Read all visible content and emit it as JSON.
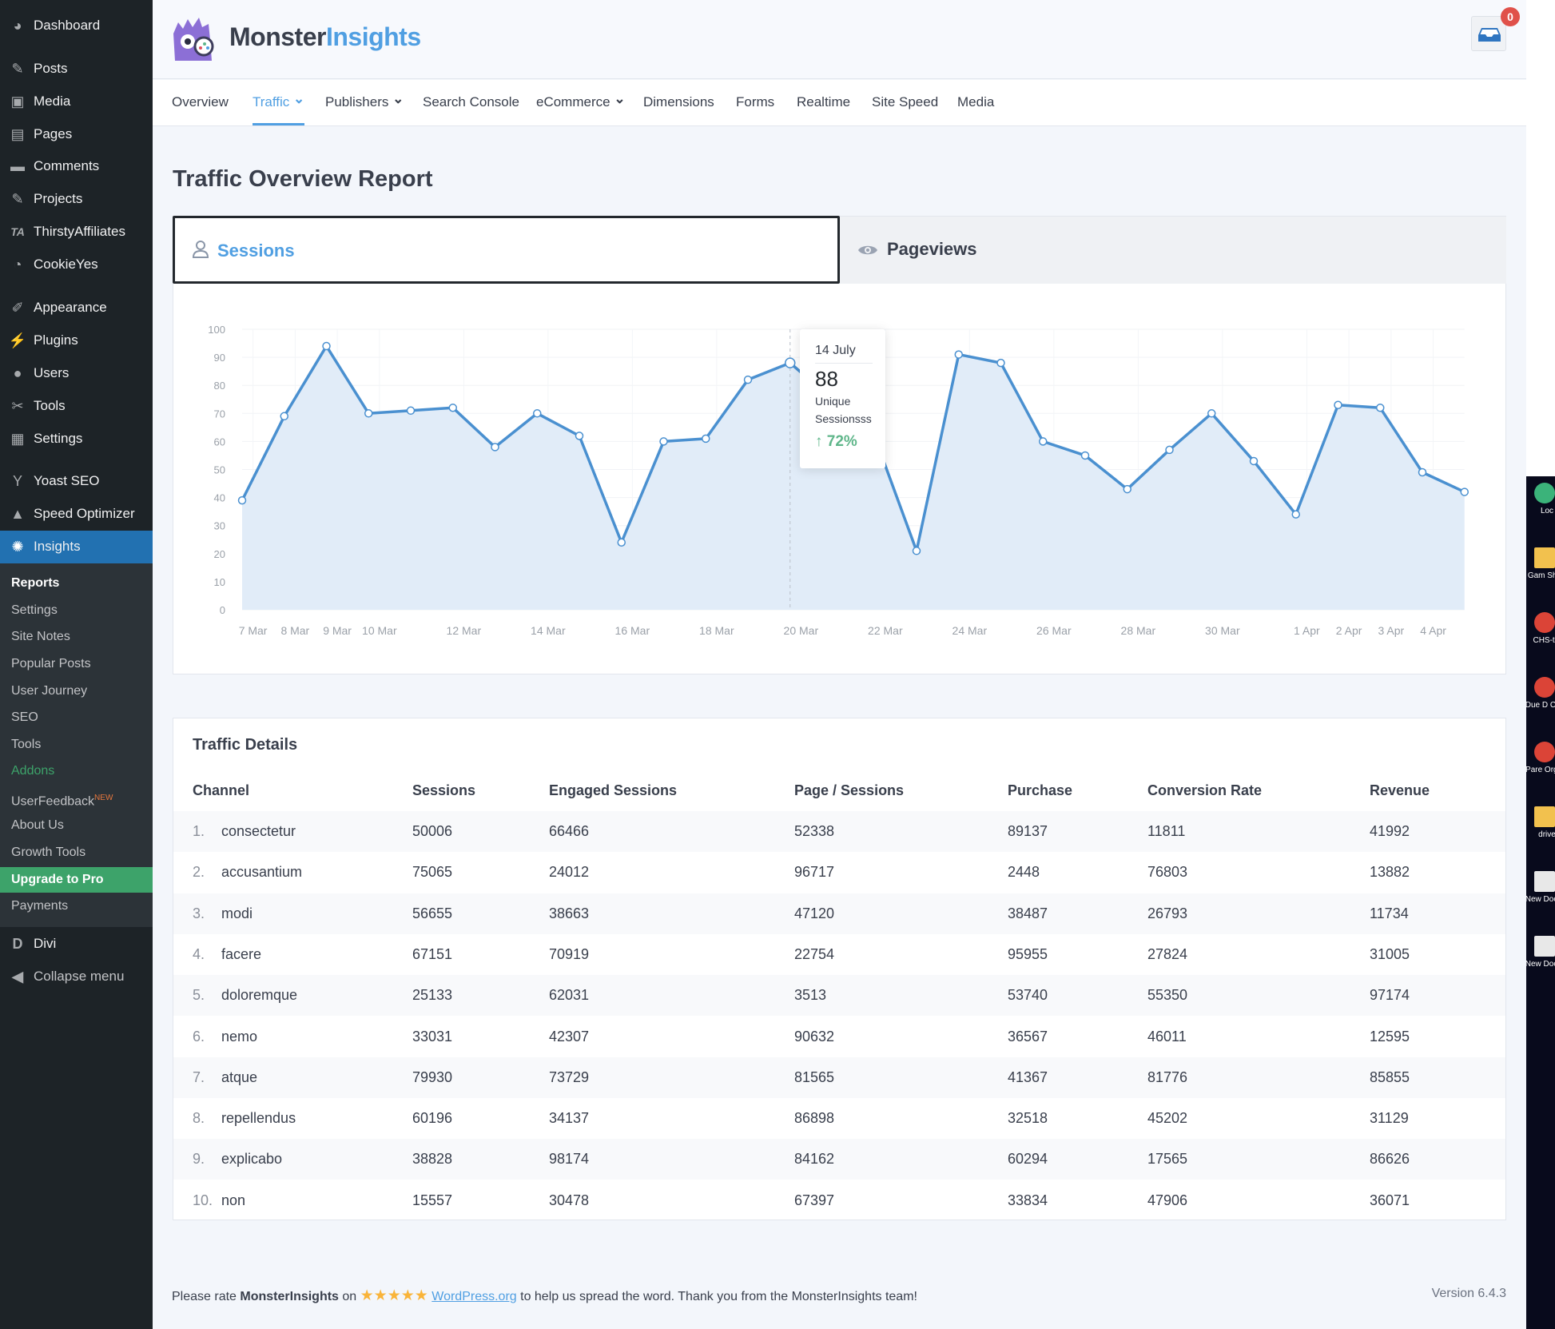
{
  "sidebar": {
    "items": [
      {
        "label": "Dashboard",
        "icon": "dashboard-icon"
      },
      {
        "label": "Posts",
        "icon": "pin-icon"
      },
      {
        "label": "Media",
        "icon": "media-icon"
      },
      {
        "label": "Pages",
        "icon": "pages-icon"
      },
      {
        "label": "Comments",
        "icon": "comment-icon"
      },
      {
        "label": "Projects",
        "icon": "pin-icon"
      },
      {
        "label": "ThirstyAffiliates",
        "icon": "ta-icon"
      },
      {
        "label": "CookieYes",
        "icon": "cookie-icon"
      },
      {
        "label": "Appearance",
        "icon": "brush-icon"
      },
      {
        "label": "Plugins",
        "icon": "plugin-icon"
      },
      {
        "label": "Users",
        "icon": "user-icon"
      },
      {
        "label": "Tools",
        "icon": "wrench-icon"
      },
      {
        "label": "Settings",
        "icon": "settings-icon"
      },
      {
        "label": "Yoast SEO",
        "icon": "yoast-icon"
      },
      {
        "label": "Speed Optimizer",
        "icon": "speed-icon"
      },
      {
        "label": "Insights",
        "icon": "monster-icon"
      }
    ],
    "submenu": [
      "Reports",
      "Settings",
      "Site Notes",
      "Popular Posts",
      "User Journey",
      "SEO",
      "Tools",
      "Addons",
      "UserFeedback",
      "About Us",
      "Growth Tools",
      "Upgrade to Pro",
      "Payments"
    ],
    "new_badge": "NEW",
    "divi": "Divi",
    "collapse": "Collapse menu"
  },
  "header": {
    "logo_part1": "Monster",
    "logo_part2": "Insights",
    "notification_count": "0"
  },
  "nav": [
    "Overview",
    "Traffic",
    "Publishers",
    "Search Console",
    "eCommerce",
    "Dimensions",
    "Forms",
    "Realtime",
    "Site Speed",
    "Media"
  ],
  "page_title": "Traffic Overview Report",
  "tabs": {
    "sessions": "Sessions",
    "pageviews": "Pageviews"
  },
  "tooltip": {
    "date": "14 July",
    "value": "88",
    "label1": "Unique",
    "label2": "Sessionsss",
    "change": "72%"
  },
  "colors": {
    "accent": "#509fe2",
    "line": "#4a90d0",
    "fill": "#e1ecf8",
    "positive": "#5fb68a",
    "sidebar": "#1d2327",
    "active": "#2271b1",
    "upgrade": "#3da36a"
  },
  "chart_data": {
    "type": "area",
    "y_ticks": [
      "0",
      "10",
      "20",
      "30",
      "40",
      "50",
      "60",
      "70",
      "80",
      "90",
      "100"
    ],
    "ylim": [
      0,
      100
    ],
    "x_tick_labels": [
      "7 Mar",
      "8 Mar",
      "9 Mar",
      "10 Mar",
      "12 Mar",
      "14 Mar",
      "16 Mar",
      "18 Mar",
      "20 Mar",
      "22 Mar",
      "24 Mar",
      "26 Mar",
      "28 Mar",
      "30 Mar",
      "1 Apr",
      "2 Apr",
      "3 Apr",
      "4 Apr"
    ],
    "values": [
      39,
      69,
      94,
      70,
      71,
      72,
      58,
      70,
      62,
      24,
      60,
      61,
      82,
      88,
      75,
      62,
      21,
      91,
      88,
      60,
      55,
      43,
      57,
      70,
      53,
      34,
      73,
      72,
      49,
      42
    ],
    "grid": true
  },
  "table": {
    "title": "Traffic Details",
    "headers": [
      "Channel",
      "Sessions",
      "Engaged Sessions",
      "Page / Sessions",
      "Purchase",
      "Conversion Rate",
      "Revenue"
    ],
    "rows": [
      [
        "1.",
        "consectetur",
        "50006",
        "66466",
        "52338",
        "89137",
        "11811",
        "41992"
      ],
      [
        "2.",
        "accusantium",
        "75065",
        "24012",
        "96717",
        "2448",
        "76803",
        "13882"
      ],
      [
        "3.",
        "modi",
        "56655",
        "38663",
        "47120",
        "38487",
        "26793",
        "11734"
      ],
      [
        "4.",
        "facere",
        "67151",
        "70919",
        "22754",
        "95955",
        "27824",
        "31005"
      ],
      [
        "5.",
        "doloremque",
        "25133",
        "62031",
        "3513",
        "53740",
        "55350",
        "97174"
      ],
      [
        "6.",
        "nemo",
        "33031",
        "42307",
        "90632",
        "36567",
        "46011",
        "12595"
      ],
      [
        "7.",
        "atque",
        "79930",
        "73729",
        "81565",
        "41367",
        "81776",
        "85855"
      ],
      [
        "8.",
        "repellendus",
        "60196",
        "34137",
        "86898",
        "32518",
        "45202",
        "31129"
      ],
      [
        "9.",
        "explicabo",
        "38828",
        "98174",
        "84162",
        "60294",
        "17565",
        "86626"
      ],
      [
        "10.",
        "non",
        "15557",
        "30478",
        "67397",
        "33834",
        "47906",
        "36071"
      ]
    ]
  },
  "footer": {
    "pre": "Please rate ",
    "brand": "MonsterInsights",
    "on": " on ",
    "link": "WordPress.org",
    "post": " to help us spread the word. Thank you from the MonsterInsights team!",
    "version": "Version 6.4.3",
    "rating": 5
  },
  "desktop": [
    "Loc",
    "Gam Short",
    "CHS-tig",
    "Due D Chec",
    "Pare Organi",
    "drive",
    "New Docum",
    "New Docum"
  ]
}
